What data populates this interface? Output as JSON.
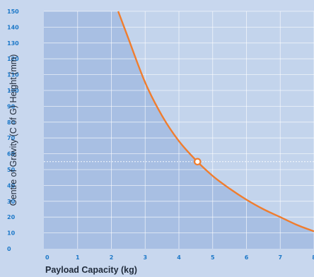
{
  "chart_data": {
    "type": "line",
    "xlabel": "Payload Capacity (kg)",
    "ylabel": "Centre of Gravity (C of G) Height  (mm)",
    "xlim": [
      0,
      8
    ],
    "ylim": [
      0,
      150
    ],
    "x_ticks": [
      "0",
      "1",
      "2",
      "3",
      "4",
      "5",
      "6",
      "7",
      "8"
    ],
    "y_ticks": [
      "0",
      "10",
      "20",
      "30",
      "40",
      "50",
      "60",
      "70",
      "80",
      "90",
      "100",
      "110",
      "120",
      "130",
      "140",
      "150"
    ],
    "grid": true,
    "series": [
      {
        "x": [
          2.2,
          2.5,
          3.0,
          3.5,
          4.0,
          4.5,
          5.0,
          5.5,
          6.0,
          6.5,
          7.0,
          7.5,
          8.0
        ],
        "y": [
          150,
          133,
          105,
          84,
          68,
          56,
          46,
          38,
          31,
          25,
          20,
          15,
          11
        ],
        "color": "#f07d2e"
      }
    ],
    "marker": {
      "x": 4.55,
      "y": 55,
      "reference_line": "horizontal-dotted"
    },
    "colors": {
      "page_background": "#c8d7ee",
      "region_under_curve": "#a8bfe3",
      "region_above_curve": "#c3d4ec",
      "grid": "#ffffff",
      "ticks": "#1c78c8",
      "curve": "#f07d2e"
    }
  }
}
